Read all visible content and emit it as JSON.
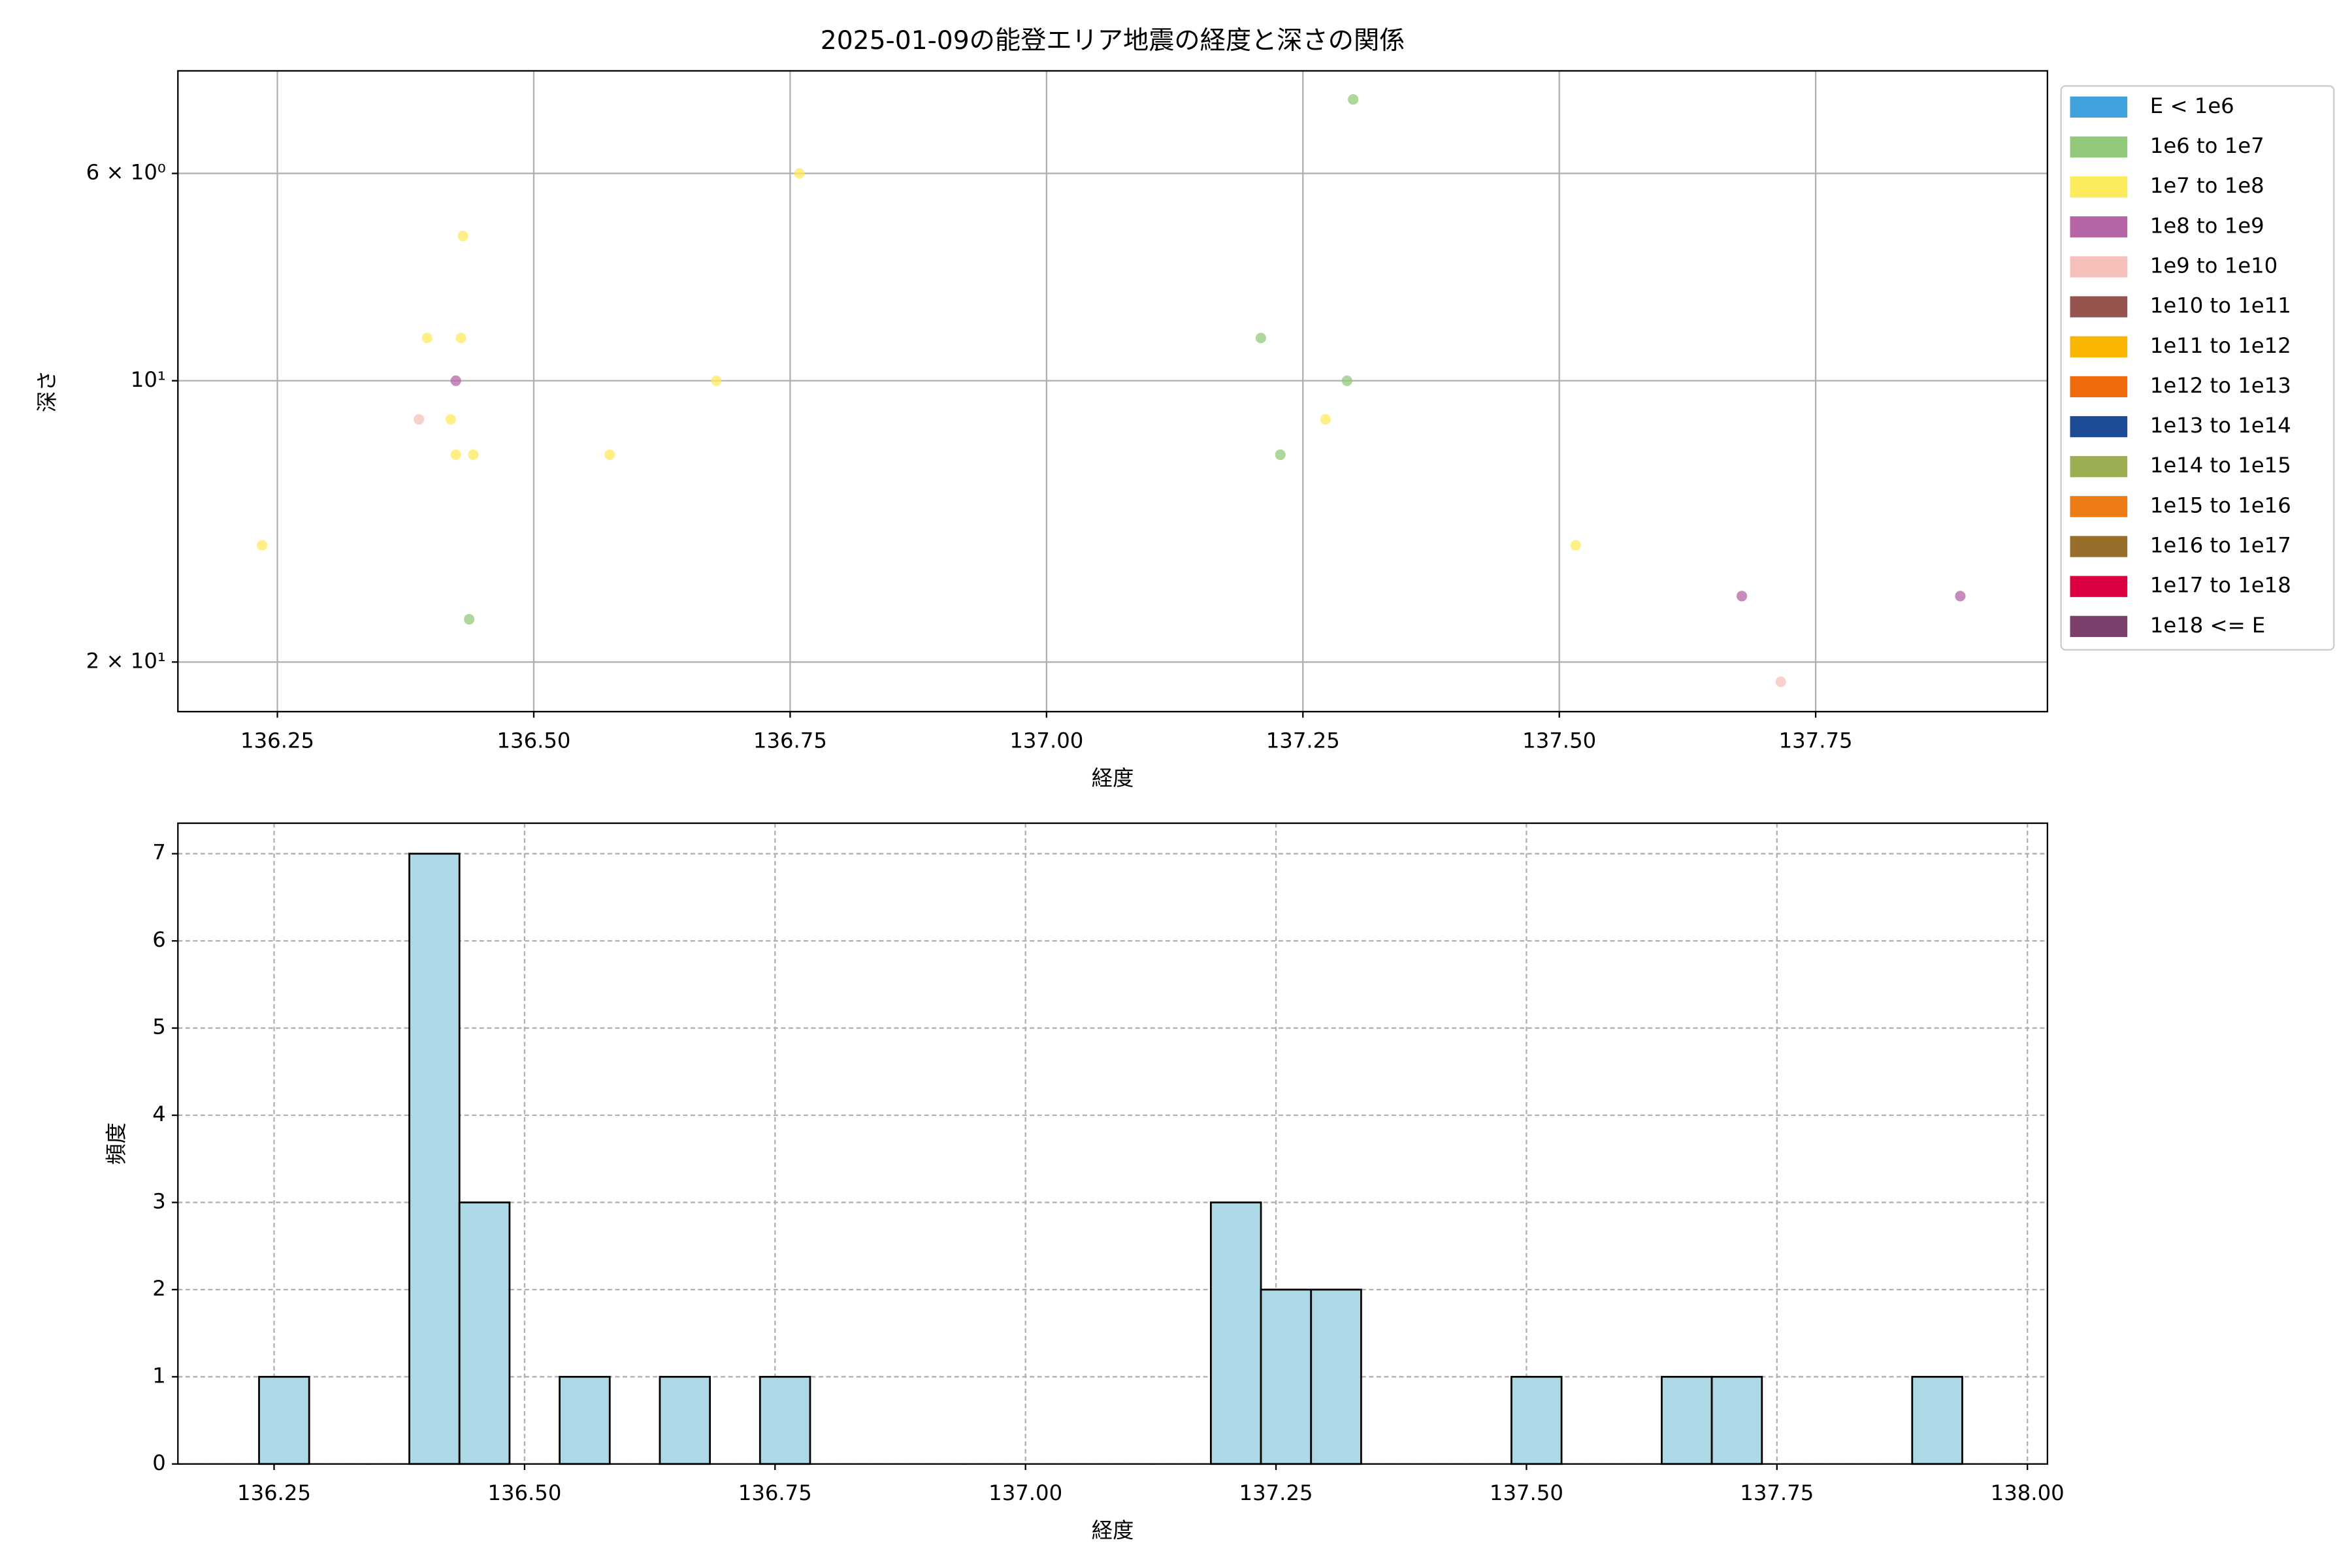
{
  "chart_data": [
    {
      "type": "scatter",
      "title": "2025-01-09の能登エリア地震の経度と深さの関係",
      "xlabel": "経度",
      "ylabel": "深さ",
      "xlim": [
        136.153,
        137.976
      ],
      "xticks": [
        136.25,
        {
          "value": 136.5,
          "label": "136.50"
        },
        136.75,
        {
          "value": 137,
          "label": "137.00"
        },
        137.25,
        {
          "value": 137.5,
          "label": "137.50"
        },
        137.75
      ],
      "ylim": [
        22.6,
        4.66
      ],
      "log_y": true,
      "yticks": [
        {
          "value": 6,
          "label": "6 × 10⁰"
        },
        {
          "value": 10,
          "label": "10¹"
        },
        {
          "value": 20,
          "label": "2 × 10¹"
        }
      ],
      "grid": true,
      "legend": "outside right",
      "series": [
        {
          "name": "E < 1e6",
          "color": "#41a1dd",
          "x": [],
          "values": []
        },
        {
          "name": "1e6 to 1e7",
          "color": "#93c97a",
          "x": [
            137.299,
            137.209,
            137.293,
            137.228,
            136.437
          ],
          "values": [
            5.0,
            9.0,
            10,
            12,
            18
          ]
        },
        {
          "name": "1e7 to 1e8",
          "color": "#fdeb5e",
          "x": [
            136.759,
            136.431,
            136.396,
            136.429,
            136.678,
            136.419,
            137.272,
            136.424,
            136.441,
            136.574,
            136.235,
            137.516
          ],
          "values": [
            6.0,
            7.0,
            9.0,
            9.0,
            10,
            11,
            11,
            12,
            12,
            12,
            15,
            15
          ]
        },
        {
          "name": "1e8 to 1e9",
          "color": "#b565a5",
          "x": [
            136.424,
            137.678,
            137.891
          ],
          "values": [
            10,
            17,
            17
          ]
        },
        {
          "name": "1e9 to 1e10",
          "color": "#f6c0bb",
          "x": [
            136.388,
            137.716
          ],
          "values": [
            11,
            21
          ]
        },
        {
          "name": "1e10 to 1e11",
          "color": "#97544f",
          "x": [],
          "values": []
        },
        {
          "name": "1e11 to 1e12",
          "color": "#f9b500",
          "x": [],
          "values": []
        },
        {
          "name": "1e12 to 1e13",
          "color": "#ee6a0b",
          "x": [],
          "values": []
        },
        {
          "name": "1e13 to 1e14",
          "color": "#1e4b95",
          "x": [],
          "values": []
        },
        {
          "name": "1e14 to 1e15",
          "color": "#9bae52",
          "x": [],
          "values": []
        },
        {
          "name": "1e15 to 1e16",
          "color": "#ec7b14",
          "x": [],
          "values": []
        },
        {
          "name": "1e16 to 1e17",
          "color": "#976f2b",
          "x": [],
          "values": []
        },
        {
          "name": "1e17 to 1e18",
          "color": "#dc0040",
          "x": [],
          "values": []
        },
        {
          "name": "1e18 <= E",
          "color": "#7a3f6b",
          "x": [],
          "values": []
        }
      ]
    },
    {
      "type": "histogram",
      "xlabel": "経度",
      "ylabel": "頻度",
      "color": "#add8e6",
      "xlim": [
        136.154,
        138.02
      ],
      "xticks": [
        136.25,
        {
          "value": 136.5,
          "label": "136.50"
        },
        136.75,
        {
          "value": 137,
          "label": "137.00"
        },
        137.25,
        {
          "value": 137.5,
          "label": "137.50"
        },
        137.75,
        {
          "value": 138,
          "label": "138.00"
        }
      ],
      "ylim": [
        0,
        7.35
      ],
      "yticks": [
        0,
        1,
        2,
        3,
        4,
        5,
        6,
        7
      ],
      "grid": true,
      "bins": [
        136.235,
        136.285,
        136.335,
        136.385,
        136.435,
        136.485,
        136.535,
        136.585,
        136.635,
        136.685,
        136.735,
        136.785,
        136.835,
        136.885,
        136.935,
        136.985,
        137.035,
        137.085,
        137.135,
        137.185,
        137.235,
        137.285,
        137.335,
        137.385,
        137.435,
        137.485,
        137.535,
        137.585,
        137.635,
        137.685,
        137.735,
        137.785,
        137.835,
        137.885,
        137.935
      ],
      "values": [
        1,
        0,
        0,
        7,
        3,
        0,
        1,
        0,
        1,
        0,
        1,
        0,
        0,
        0,
        0,
        0,
        0,
        0,
        0,
        3,
        2,
        2,
        0,
        0,
        0,
        1,
        0,
        0,
        1,
        1,
        0,
        0,
        0,
        1
      ]
    }
  ]
}
